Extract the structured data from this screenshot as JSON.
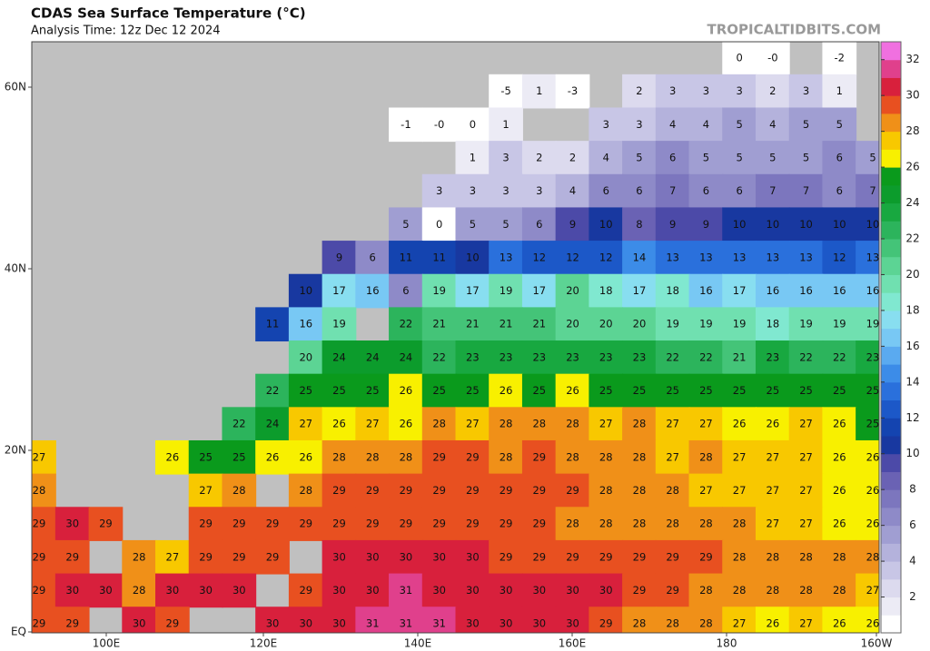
{
  "header": {
    "title": "CDAS Sea Surface Temperature (°C)",
    "subtitle": "Analysis Time: 12z Dec 12 2024",
    "watermark": "TROPICALTIDBITS.COM"
  },
  "axes": {
    "lon_labels": [
      "100E",
      "120E",
      "140E",
      "160E",
      "180",
      "160W"
    ],
    "lat_labels": [
      "60N",
      "40N",
      "20N",
      "EQ"
    ]
  },
  "colorbar": {
    "range": [
      0,
      33
    ],
    "ticks": [
      2,
      4,
      6,
      8,
      10,
      12,
      14,
      16,
      18,
      20,
      22,
      24,
      26,
      28,
      30,
      32
    ],
    "colors": [
      "#ffffff",
      "#ecebf5",
      "#dcdaee",
      "#c8c6e6",
      "#b4b2dc",
      "#a09ed2",
      "#8e8ac8",
      "#7c76be",
      "#6a62b4",
      "#4c4aa8",
      "#1838a0",
      "#1444b0",
      "#1c58c8",
      "#2a70dc",
      "#3c8ce8",
      "#5aaaf0",
      "#78c8f4",
      "#88def0",
      "#80e8d0",
      "#70e0b0",
      "#5cd494",
      "#44c478",
      "#2cb45c",
      "#18a840",
      "#0c9c2c",
      "#0a9a1c",
      "#f8f000",
      "#f8c800",
      "#f09018",
      "#e85020",
      "#d8203c",
      "#e0408c",
      "#f070e0"
    ]
  },
  "grid": {
    "rows": [
      [
        null,
        null,
        null,
        null,
        null,
        null,
        null,
        null,
        null,
        null,
        null,
        null,
        null,
        null,
        null,
        null,
        null,
        null,
        null,
        null,
        null,
        "0",
        "-0",
        null,
        "-2",
        null
      ],
      [
        null,
        null,
        null,
        null,
        null,
        null,
        null,
        null,
        null,
        null,
        null,
        null,
        null,
        null,
        "-5",
        "1",
        "-3",
        null,
        "2",
        "3",
        "3",
        "3",
        "2",
        "3",
        "1",
        null
      ],
      [
        null,
        null,
        null,
        null,
        null,
        null,
        null,
        null,
        null,
        null,
        null,
        "-1",
        "-0",
        "0",
        "1",
        null,
        null,
        "3",
        "3",
        "4",
        "4",
        "5",
        "4",
        "5",
        "5",
        null
      ],
      [
        null,
        null,
        null,
        null,
        null,
        null,
        null,
        null,
        null,
        null,
        null,
        null,
        null,
        "1",
        "3",
        "2",
        "2",
        "4",
        "5",
        "6",
        "5",
        "5",
        "5",
        "5",
        "6",
        "5"
      ],
      [
        null,
        null,
        null,
        null,
        null,
        null,
        null,
        null,
        null,
        null,
        null,
        null,
        "3",
        "3",
        "3",
        "3",
        "4",
        "6",
        "6",
        "7",
        "6",
        "6",
        "7",
        "7",
        "6",
        "7"
      ],
      [
        null,
        null,
        null,
        null,
        null,
        null,
        null,
        null,
        null,
        null,
        null,
        "5",
        "0",
        "5",
        "5",
        "6",
        "9",
        "10",
        "8",
        "9",
        "9",
        "10",
        "10",
        "10",
        "10",
        "10"
      ],
      [
        null,
        null,
        null,
        null,
        null,
        null,
        null,
        null,
        null,
        "9",
        "6",
        "11",
        "11",
        "10",
        "13",
        "12",
        "12",
        "12",
        "14",
        "13",
        "13",
        "13",
        "13",
        "13",
        "12",
        "13"
      ],
      [
        null,
        null,
        null,
        null,
        null,
        null,
        null,
        null,
        "10",
        "17",
        "16",
        "6",
        "19",
        "17",
        "19",
        "17",
        "20",
        "18",
        "17",
        "18",
        "16",
        "17",
        "16",
        "16",
        "16",
        "16"
      ],
      [
        null,
        null,
        null,
        null,
        null,
        null,
        null,
        "11",
        "16",
        "19",
        null,
        "22",
        "21",
        "21",
        "21",
        "21",
        "20",
        "20",
        "20",
        "19",
        "19",
        "19",
        "18",
        "19",
        "19",
        "19"
      ],
      [
        null,
        null,
        null,
        null,
        null,
        null,
        null,
        null,
        "20",
        "24",
        "24",
        "24",
        "22",
        "23",
        "23",
        "23",
        "23",
        "23",
        "23",
        "22",
        "22",
        "21",
        "23",
        "22",
        "22",
        "23"
      ],
      [
        null,
        null,
        null,
        null,
        null,
        null,
        null,
        "22",
        "25",
        "25",
        "25",
        "26",
        "25",
        "25",
        "26",
        "25",
        "26",
        "25",
        "25",
        "25",
        "25",
        "25",
        "25",
        "25",
        "25",
        "25"
      ],
      [
        null,
        null,
        null,
        null,
        null,
        null,
        "22",
        "24",
        "27",
        "26",
        "27",
        "26",
        "28",
        "27",
        "28",
        "28",
        "28",
        "27",
        "28",
        "27",
        "27",
        "26",
        "26",
        "27",
        "26",
        "25"
      ],
      [
        "27",
        null,
        null,
        null,
        "26",
        "25",
        "25",
        "26",
        "26",
        "28",
        "28",
        "28",
        "29",
        "29",
        "28",
        "29",
        "28",
        "28",
        "28",
        "27",
        "28",
        "27",
        "27",
        "27",
        "26",
        "26"
      ],
      [
        "28",
        null,
        null,
        null,
        null,
        "27",
        "28",
        null,
        "28",
        "29",
        "29",
        "29",
        "29",
        "29",
        "29",
        "29",
        "29",
        "28",
        "28",
        "28",
        "27",
        "27",
        "27",
        "27",
        "26",
        "26"
      ],
      [
        "29",
        "30",
        "29",
        null,
        null,
        "29",
        "29",
        "29",
        "29",
        "29",
        "29",
        "29",
        "29",
        "29",
        "29",
        "29",
        "28",
        "28",
        "28",
        "28",
        "28",
        "28",
        "27",
        "27",
        "26",
        "26"
      ],
      [
        "29",
        "29",
        null,
        "28",
        "27",
        "29",
        "29",
        "29",
        null,
        "30",
        "30",
        "30",
        "30",
        "30",
        "29",
        "29",
        "29",
        "29",
        "29",
        "29",
        "29",
        "28",
        "28",
        "28",
        "28",
        "28"
      ],
      [
        "29",
        "30",
        "30",
        "28",
        "30",
        "30",
        "30",
        null,
        "29",
        "30",
        "30",
        "31",
        "30",
        "30",
        "30",
        "30",
        "30",
        "30",
        "29",
        "29",
        "28",
        "28",
        "28",
        "28",
        "28",
        "27"
      ],
      [
        "29",
        "29",
        null,
        "30",
        "29",
        null,
        null,
        "30",
        "30",
        "30",
        "31",
        "31",
        "31",
        "30",
        "30",
        "30",
        "30",
        "29",
        "28",
        "28",
        "28",
        "27",
        "26",
        "27",
        "26",
        "26"
      ]
    ]
  }
}
